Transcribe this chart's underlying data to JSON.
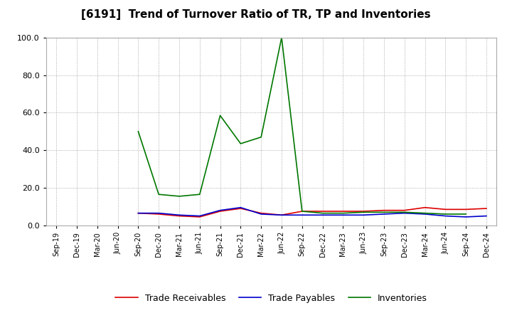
{
  "title": "[6191]  Trend of Turnover Ratio of TR, TP and Inventories",
  "x_labels": [
    "Sep-19",
    "Dec-19",
    "Mar-20",
    "Jun-20",
    "Sep-20",
    "Dec-20",
    "Mar-21",
    "Jun-21",
    "Sep-21",
    "Dec-21",
    "Mar-22",
    "Jun-22",
    "Sep-22",
    "Dec-22",
    "Mar-23",
    "Jun-23",
    "Sep-23",
    "Dec-23",
    "Mar-24",
    "Jun-24",
    "Sep-24",
    "Dec-24"
  ],
  "trade_receivables": [
    null,
    null,
    null,
    null,
    6.5,
    6.0,
    5.0,
    4.5,
    7.5,
    9.0,
    6.5,
    5.5,
    7.5,
    7.5,
    7.5,
    7.5,
    8.0,
    8.0,
    9.5,
    8.5,
    8.5,
    9.0
  ],
  "trade_payables": [
    null,
    null,
    null,
    null,
    6.5,
    6.5,
    5.5,
    5.0,
    8.0,
    9.5,
    6.0,
    5.5,
    5.5,
    5.5,
    5.5,
    5.5,
    6.0,
    6.5,
    6.0,
    5.0,
    4.5,
    5.0
  ],
  "inventories": [
    null,
    null,
    null,
    null,
    50.0,
    16.5,
    15.5,
    16.5,
    58.5,
    43.5,
    47.0,
    100.0,
    7.5,
    6.5,
    6.5,
    7.0,
    7.0,
    7.0,
    6.5,
    6.0,
    6.0,
    null
  ],
  "ylim": [
    0.0,
    100.0
  ],
  "yticks": [
    0.0,
    20.0,
    40.0,
    60.0,
    80.0,
    100.0
  ],
  "color_tr": "#dd0000",
  "color_tp": "#0000cc",
  "color_inv": "#007700",
  "legend_labels": [
    "Trade Receivables",
    "Trade Payables",
    "Inventories"
  ],
  "title_fontsize": 11,
  "background_color": "#ffffff",
  "figure_width": 7.2,
  "figure_height": 4.4,
  "dpi": 100
}
